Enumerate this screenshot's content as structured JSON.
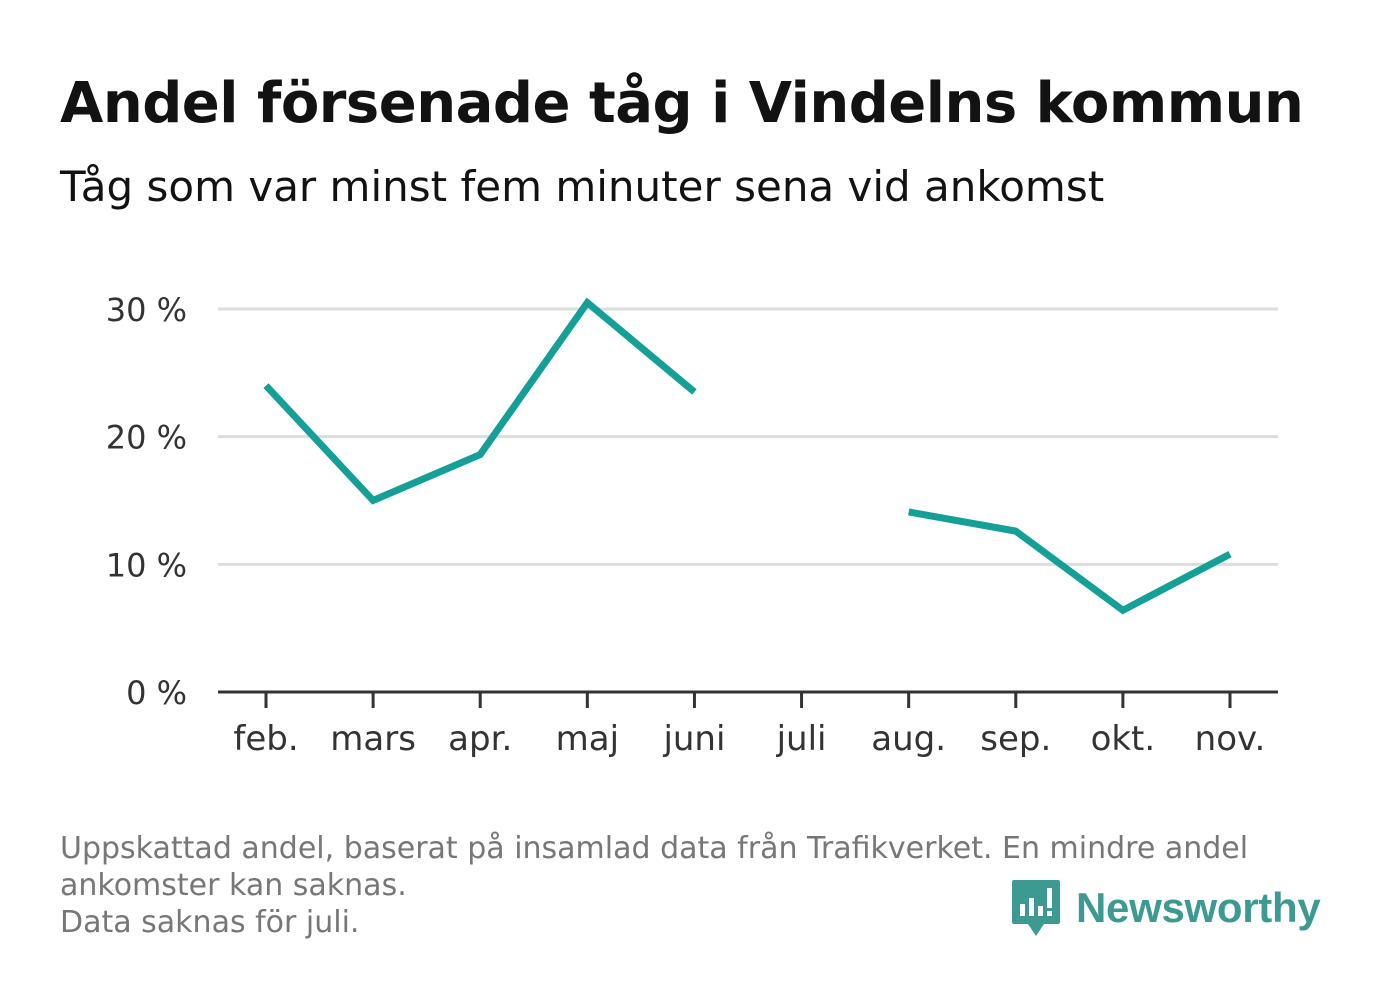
{
  "header": {
    "title": "Andel försenade tåg i Vindelns kommun",
    "subtitle": "Tåg som var minst fem minuter sena vid ankomst"
  },
  "chart_data": {
    "type": "line",
    "title": "Andel försenade tåg i Vindelns kommun",
    "subtitle": "Tåg som var minst fem minuter sena vid ankomst",
    "categories": [
      "feb.",
      "mars",
      "apr.",
      "maj",
      "juni",
      "juli",
      "aug.",
      "sep.",
      "okt.",
      "nov."
    ],
    "series": [
      {
        "values": [
          24.0,
          15.0,
          18.6,
          30.5,
          23.5,
          null,
          14.1,
          12.6,
          6.4,
          10.8
        ]
      }
    ],
    "ylim": [
      0,
      30
    ],
    "yticks": [
      0,
      10,
      20,
      30
    ],
    "ytick_labels": [
      "0 %",
      "10 %",
      "20 %",
      "30 %"
    ],
    "xlabel": "",
    "ylabel": "",
    "grid": true,
    "line_color": "#14a096",
    "grid_color": "#dddddd",
    "axis_color": "#333333"
  },
  "footer": {
    "notes": [
      "Uppskattad andel, baserat på insamlad data från Trafikverket. En mindre andel",
      "ankomster kan saknas.",
      "Data saknas för juli."
    ],
    "brand": "Newsworthy",
    "brand_color": "#3d9a93"
  }
}
